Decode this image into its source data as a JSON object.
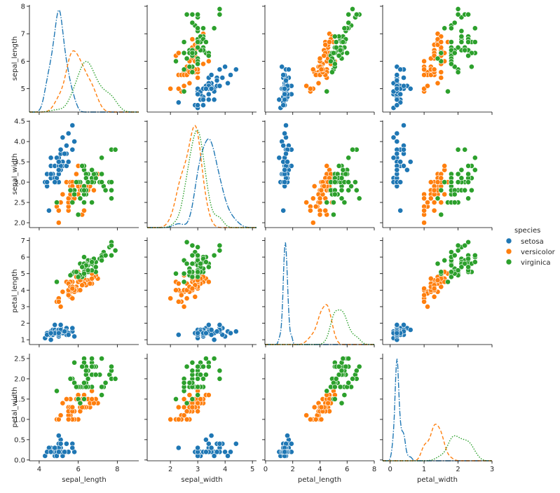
{
  "chart_data": {
    "type": "scatter",
    "kind": "pairplot",
    "variables": [
      "sepal_length",
      "sepal_width",
      "petal_length",
      "petal_width"
    ],
    "hue_title": "species",
    "species": [
      {
        "name": "setosa",
        "color": "#1f77b4"
      },
      {
        "name": "versicolor",
        "color": "#ff7f0e"
      },
      {
        "name": "virginica",
        "color": "#2ca02c"
      }
    ],
    "axes": {
      "sepal_length": {
        "range": [
          4.15,
          8.05
        ],
        "ticks": [
          5,
          6,
          7,
          8
        ],
        "bottom_range": [
          3.5,
          9.1
        ],
        "bottom_ticks": [
          4,
          6,
          8
        ]
      },
      "sepal_width": {
        "range": [
          1.88,
          4.52
        ],
        "ticks": [
          2.0,
          2.5,
          3.0,
          3.5,
          4.0,
          4.5
        ],
        "tick_labels": [
          "2.0",
          "2.5",
          "3.0",
          "3.5",
          "4.0",
          "4.5"
        ],
        "bottom_range": [
          1.15,
          5.15
        ],
        "bottom_ticks": [
          2,
          3,
          4,
          5
        ]
      },
      "petal_length": {
        "range": [
          0.71,
          7.19
        ],
        "ticks": [
          1,
          2,
          3,
          4,
          5,
          6,
          7
        ],
        "bottom_range": [
          -0.05,
          8.0
        ],
        "bottom_ticks": [
          0,
          2,
          4,
          6,
          8
        ]
      },
      "petal_width": {
        "range": [
          -0.02,
          2.62
        ],
        "ticks": [
          0.0,
          0.5,
          1.0,
          1.5,
          2.0,
          2.5
        ],
        "tick_labels": [
          "0.0",
          "0.5",
          "1.0",
          "1.5",
          "2.0",
          "2.5"
        ],
        "bottom_range": [
          -0.22,
          3.0
        ],
        "bottom_ticks": [
          0,
          1,
          2,
          3
        ]
      }
    },
    "diagonal_kde": {
      "sepal_length": [
        {
          "species": "setosa",
          "peak_x": 5.0,
          "peak_density": 1.25
        },
        {
          "species": "versicolor",
          "peak_x": 5.9,
          "peak_density": 0.75
        },
        {
          "species": "virginica",
          "peak_x": 6.5,
          "peak_density": 0.62
        }
      ],
      "sepal_width": [
        {
          "species": "setosa",
          "peak_x": 3.4,
          "peak_density": 1.0
        },
        {
          "species": "versicolor",
          "peak_x": 2.8,
          "peak_density": 1.15
        },
        {
          "species": "virginica",
          "peak_x": 3.0,
          "peak_density": 1.1
        }
      ],
      "petal_length": [
        {
          "species": "setosa",
          "peak_x": 1.46,
          "peak_density": 2.3
        },
        {
          "species": "versicolor",
          "peak_x": 4.3,
          "peak_density": 0.9
        },
        {
          "species": "virginica",
          "peak_x": 5.5,
          "peak_density": 0.78
        }
      ],
      "petal_width": [
        {
          "species": "setosa",
          "peak_x": 0.22,
          "peak_density": 5.3
        },
        {
          "species": "versicolor",
          "peak_x": 1.3,
          "peak_density": 1.9
        },
        {
          "species": "virginica",
          "peak_x": 2.0,
          "peak_density": 1.3
        }
      ]
    },
    "points": {
      "setosa": [
        [
          5.1,
          3.5,
          1.4,
          0.2
        ],
        [
          4.9,
          3.0,
          1.4,
          0.2
        ],
        [
          4.7,
          3.2,
          1.3,
          0.2
        ],
        [
          4.6,
          3.1,
          1.5,
          0.2
        ],
        [
          5.0,
          3.6,
          1.4,
          0.2
        ],
        [
          5.4,
          3.9,
          1.7,
          0.4
        ],
        [
          4.6,
          3.4,
          1.4,
          0.3
        ],
        [
          5.0,
          3.4,
          1.5,
          0.2
        ],
        [
          4.4,
          2.9,
          1.4,
          0.2
        ],
        [
          4.9,
          3.1,
          1.5,
          0.1
        ],
        [
          5.4,
          3.7,
          1.5,
          0.2
        ],
        [
          4.8,
          3.4,
          1.6,
          0.2
        ],
        [
          4.8,
          3.0,
          1.4,
          0.1
        ],
        [
          4.3,
          3.0,
          1.1,
          0.1
        ],
        [
          5.8,
          4.0,
          1.2,
          0.2
        ],
        [
          5.7,
          4.4,
          1.5,
          0.4
        ],
        [
          5.4,
          3.9,
          1.3,
          0.4
        ],
        [
          5.1,
          3.5,
          1.4,
          0.3
        ],
        [
          5.7,
          3.8,
          1.7,
          0.3
        ],
        [
          5.1,
          3.8,
          1.5,
          0.3
        ],
        [
          5.4,
          3.4,
          1.7,
          0.2
        ],
        [
          5.1,
          3.7,
          1.5,
          0.4
        ],
        [
          4.6,
          3.6,
          1.0,
          0.2
        ],
        [
          5.1,
          3.3,
          1.7,
          0.5
        ],
        [
          4.8,
          3.4,
          1.9,
          0.2
        ],
        [
          5.0,
          3.0,
          1.6,
          0.2
        ],
        [
          5.0,
          3.4,
          1.6,
          0.4
        ],
        [
          5.2,
          3.5,
          1.5,
          0.2
        ],
        [
          5.2,
          3.4,
          1.4,
          0.2
        ],
        [
          4.7,
          3.2,
          1.6,
          0.2
        ],
        [
          4.8,
          3.1,
          1.6,
          0.2
        ],
        [
          5.4,
          3.4,
          1.5,
          0.4
        ],
        [
          5.2,
          4.1,
          1.5,
          0.1
        ],
        [
          5.5,
          4.2,
          1.4,
          0.2
        ],
        [
          4.9,
          3.1,
          1.5,
          0.2
        ],
        [
          5.0,
          3.2,
          1.2,
          0.2
        ],
        [
          5.5,
          3.5,
          1.3,
          0.2
        ],
        [
          4.9,
          3.6,
          1.4,
          0.1
        ],
        [
          4.4,
          3.0,
          1.3,
          0.2
        ],
        [
          5.1,
          3.4,
          1.5,
          0.2
        ],
        [
          5.0,
          3.5,
          1.3,
          0.3
        ],
        [
          4.5,
          2.3,
          1.3,
          0.3
        ],
        [
          4.4,
          3.2,
          1.3,
          0.2
        ],
        [
          5.0,
          3.5,
          1.6,
          0.6
        ],
        [
          5.1,
          3.8,
          1.9,
          0.4
        ],
        [
          4.8,
          3.0,
          1.4,
          0.3
        ],
        [
          5.1,
          3.8,
          1.6,
          0.2
        ],
        [
          4.6,
          3.2,
          1.4,
          0.2
        ],
        [
          5.3,
          3.7,
          1.5,
          0.2
        ],
        [
          5.0,
          3.3,
          1.4,
          0.2
        ]
      ],
      "versicolor": [
        [
          7.0,
          3.2,
          4.7,
          1.4
        ],
        [
          6.4,
          3.2,
          4.5,
          1.5
        ],
        [
          6.9,
          3.1,
          4.9,
          1.5
        ],
        [
          5.5,
          2.3,
          4.0,
          1.3
        ],
        [
          6.5,
          2.8,
          4.6,
          1.5
        ],
        [
          5.7,
          2.8,
          4.5,
          1.3
        ],
        [
          6.3,
          3.3,
          4.7,
          1.6
        ],
        [
          4.9,
          2.4,
          3.3,
          1.0
        ],
        [
          6.6,
          2.9,
          4.6,
          1.3
        ],
        [
          5.2,
          2.7,
          3.9,
          1.4
        ],
        [
          5.0,
          2.0,
          3.5,
          1.0
        ],
        [
          5.9,
          3.0,
          4.2,
          1.5
        ],
        [
          6.0,
          2.2,
          4.0,
          1.0
        ],
        [
          6.1,
          2.9,
          4.7,
          1.4
        ],
        [
          5.6,
          2.9,
          3.6,
          1.3
        ],
        [
          6.7,
          3.1,
          4.4,
          1.4
        ],
        [
          5.6,
          3.0,
          4.5,
          1.5
        ],
        [
          5.8,
          2.7,
          4.1,
          1.0
        ],
        [
          6.2,
          2.2,
          4.5,
          1.5
        ],
        [
          5.6,
          2.5,
          3.9,
          1.1
        ],
        [
          5.9,
          3.2,
          4.8,
          1.8
        ],
        [
          6.1,
          2.8,
          4.0,
          1.3
        ],
        [
          6.3,
          2.5,
          4.9,
          1.5
        ],
        [
          6.1,
          2.8,
          4.7,
          1.2
        ],
        [
          6.4,
          2.9,
          4.3,
          1.3
        ],
        [
          6.6,
          3.0,
          4.4,
          1.4
        ],
        [
          6.8,
          2.8,
          4.8,
          1.4
        ],
        [
          6.7,
          3.0,
          5.0,
          1.7
        ],
        [
          6.0,
          2.9,
          4.5,
          1.5
        ],
        [
          5.7,
          2.6,
          3.5,
          1.0
        ],
        [
          5.5,
          2.4,
          3.8,
          1.1
        ],
        [
          5.5,
          2.4,
          3.7,
          1.0
        ],
        [
          5.8,
          2.7,
          3.9,
          1.2
        ],
        [
          6.0,
          2.7,
          5.1,
          1.6
        ],
        [
          5.4,
          3.0,
          4.5,
          1.5
        ],
        [
          6.0,
          3.4,
          4.5,
          1.6
        ],
        [
          6.7,
          3.1,
          4.7,
          1.5
        ],
        [
          6.3,
          2.3,
          4.4,
          1.3
        ],
        [
          5.6,
          3.0,
          4.1,
          1.3
        ],
        [
          5.5,
          2.5,
          4.0,
          1.3
        ],
        [
          5.5,
          2.6,
          4.4,
          1.2
        ],
        [
          6.1,
          3.0,
          4.6,
          1.4
        ],
        [
          5.8,
          2.6,
          4.0,
          1.2
        ],
        [
          5.0,
          2.3,
          3.3,
          1.0
        ],
        [
          5.6,
          2.7,
          4.2,
          1.3
        ],
        [
          5.7,
          3.0,
          4.2,
          1.2
        ],
        [
          5.7,
          2.9,
          4.2,
          1.3
        ],
        [
          6.2,
          2.9,
          4.3,
          1.3
        ],
        [
          5.1,
          2.5,
          3.0,
          1.1
        ],
        [
          5.7,
          2.8,
          4.1,
          1.3
        ]
      ],
      "virginica": [
        [
          6.3,
          3.3,
          6.0,
          2.5
        ],
        [
          5.8,
          2.7,
          5.1,
          1.9
        ],
        [
          7.1,
          3.0,
          5.9,
          2.1
        ],
        [
          6.3,
          2.9,
          5.6,
          1.8
        ],
        [
          6.5,
          3.0,
          5.8,
          2.2
        ],
        [
          7.6,
          3.0,
          6.6,
          2.1
        ],
        [
          4.9,
          2.5,
          4.5,
          1.7
        ],
        [
          7.3,
          2.9,
          6.3,
          1.8
        ],
        [
          6.7,
          2.5,
          5.8,
          1.8
        ],
        [
          7.2,
          3.6,
          6.1,
          2.5
        ],
        [
          6.5,
          3.2,
          5.1,
          2.0
        ],
        [
          6.4,
          2.7,
          5.3,
          1.9
        ],
        [
          6.8,
          3.0,
          5.5,
          2.1
        ],
        [
          5.7,
          2.5,
          5.0,
          2.0
        ],
        [
          5.8,
          2.8,
          5.1,
          2.4
        ],
        [
          6.4,
          3.2,
          5.3,
          2.3
        ],
        [
          6.5,
          3.0,
          5.5,
          1.8
        ],
        [
          7.7,
          3.8,
          6.7,
          2.2
        ],
        [
          7.7,
          2.6,
          6.9,
          2.3
        ],
        [
          6.0,
          2.2,
          5.0,
          1.5
        ],
        [
          6.9,
          3.2,
          5.7,
          2.3
        ],
        [
          5.6,
          2.8,
          4.9,
          2.0
        ],
        [
          7.7,
          2.8,
          6.7,
          2.0
        ],
        [
          6.3,
          2.7,
          4.9,
          1.8
        ],
        [
          6.7,
          3.3,
          5.7,
          2.1
        ],
        [
          7.2,
          3.2,
          6.0,
          1.8
        ],
        [
          6.2,
          2.8,
          4.8,
          1.8
        ],
        [
          6.1,
          3.0,
          4.9,
          1.8
        ],
        [
          6.4,
          2.8,
          5.6,
          2.1
        ],
        [
          7.2,
          3.0,
          5.8,
          1.6
        ],
        [
          7.4,
          2.8,
          6.1,
          1.9
        ],
        [
          7.9,
          3.8,
          6.4,
          2.0
        ],
        [
          6.4,
          2.8,
          5.6,
          2.2
        ],
        [
          6.3,
          2.8,
          5.1,
          1.5
        ],
        [
          6.1,
          2.6,
          5.6,
          1.4
        ],
        [
          7.7,
          3.0,
          6.1,
          2.3
        ],
        [
          6.3,
          3.4,
          5.6,
          2.4
        ],
        [
          6.4,
          3.1,
          5.5,
          1.8
        ],
        [
          6.0,
          3.0,
          4.8,
          1.8
        ],
        [
          6.9,
          3.1,
          5.4,
          2.1
        ],
        [
          6.7,
          3.1,
          5.6,
          2.4
        ],
        [
          6.9,
          3.1,
          5.1,
          2.3
        ],
        [
          5.8,
          2.7,
          5.1,
          1.9
        ],
        [
          6.8,
          3.2,
          5.9,
          2.3
        ],
        [
          6.7,
          3.3,
          5.7,
          2.5
        ],
        [
          6.7,
          3.0,
          5.2,
          2.3
        ],
        [
          6.3,
          2.5,
          5.0,
          1.9
        ],
        [
          6.5,
          3.0,
          5.2,
          2.0
        ],
        [
          6.2,
          3.4,
          5.4,
          2.3
        ],
        [
          5.9,
          3.0,
          5.1,
          1.8
        ]
      ]
    }
  }
}
